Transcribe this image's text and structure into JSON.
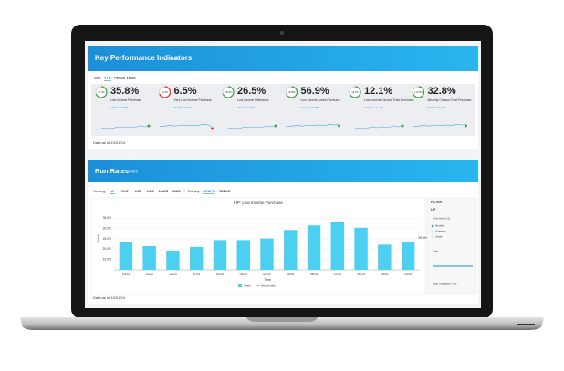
{
  "kpi_header": {
    "title": "Key Performance Indicators",
    "tag": "HMDI"
  },
  "time_filter": {
    "label": "Time:",
    "options": [
      "YTD",
      "PRIOR YEAR"
    ]
  },
  "kpis": [
    {
      "change": "+7.3%",
      "value": "35.8%",
      "label": "Low Income Purchase",
      "goal": "LIP Goal: 28%",
      "color": "#43a047"
    },
    {
      "change": "-0.5%",
      "value": "6.5%",
      "label": "Very Low Income Purchase",
      "goal": "VLIP Goal: 7%",
      "color": "#e53935"
    },
    {
      "change": "+40.5%",
      "value": "26.5%",
      "label": "Low Income Refinance",
      "goal": "LIR Goal: 24%",
      "color": "#43a047"
    },
    {
      "change": "+165%",
      "value": "56.9%",
      "label": "Low Income Areas Purchase",
      "goal": "LAG Goal: TBD",
      "color": "#43a047"
    },
    {
      "change": "+8.7%",
      "value": "12.1%",
      "label": "Low Income Census Tract Purchase",
      "goal": "LACS Goal: 4%",
      "color": "#43a047"
    },
    {
      "change": "+10.5%",
      "value": "32.8%",
      "label": "Minority Census Tract Purchase",
      "goal": "MAS Goal: 7%",
      "color": "#43a047"
    }
  ],
  "kpi_footer": "Data as of 10/31/24",
  "run_rates_header": {
    "title": "Run Rates",
    "tag": "HMDI"
  },
  "viewing": {
    "label": "Viewing:",
    "options": [
      "LIP",
      "VLIP",
      "LIR",
      "LAG",
      "LACS",
      "MAS"
    ]
  },
  "display": {
    "label": "Display:",
    "options": [
      "GRAPH",
      "TABLE"
    ]
  },
  "chart_data": {
    "type": "bar",
    "title": "LIP: Low Income Purchase",
    "y_label": "Share",
    "x_label": "Time",
    "categories": [
      "10/23",
      "11/23",
      "12/23",
      "01/24",
      "02/24",
      "03/24",
      "04/24",
      "05/24",
      "06/24",
      "07/24",
      "08/24",
      "09/24",
      "10/24"
    ],
    "series": [
      {
        "name": "Share",
        "color": "#4dd0f0",
        "values": [
          23.3,
          21.5,
          19.3,
          21.1,
          24.4,
          24.4,
          25.2,
          29.3,
          31.5,
          33,
          30.4,
          22.2,
          23.7
        ]
      }
    ],
    "benchmark_label": "Benchmark",
    "end_label": "35.8%",
    "ylim": [
      10,
      40
    ],
    "yticks": [
      {
        "value": 15,
        "label": "15.0%"
      },
      {
        "value": 20,
        "label": "20.0%"
      },
      {
        "value": 25,
        "label": "25.0%"
      },
      {
        "value": 30,
        "label": "30.0%"
      },
      {
        "value": 35,
        "label": "35.0%"
      }
    ],
    "grid": true
  },
  "filter_panel": {
    "title": "FILTER",
    "metric": "LIP",
    "sections": [
      "Time Series (1)",
      "Monthly",
      "Quarterly",
      "Yearly",
      "Time",
      "Loan Origination Typ..."
    ]
  },
  "run_footer": "Data as of 10/31/24"
}
